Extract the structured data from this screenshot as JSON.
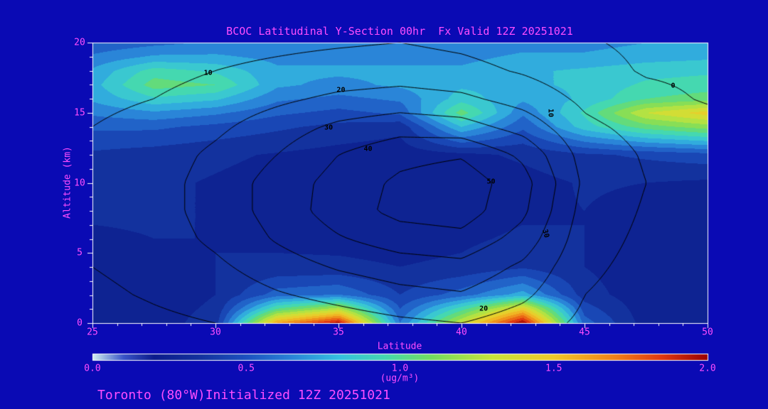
{
  "colors": {
    "background": "#0a0ab4",
    "text": "#ff4dff",
    "axis_line": "#ffffff",
    "contour_line": "#000000",
    "contour_label": "#000000"
  },
  "footer": {
    "text": "Toronto (80°W)Initialized 12Z 20251021"
  },
  "chart_data": {
    "type": "heatmap",
    "title": "BCOC Latitudinal Y-Section 00hr  Fx Valid 12Z 20251021",
    "xlabel": "Latitude",
    "ylabel": "Altitude (km)",
    "xlim": [
      25,
      50
    ],
    "ylim": [
      0,
      20
    ],
    "x_ticks": [
      "25",
      "30",
      "35",
      "40",
      "45",
      "50"
    ],
    "y_ticks": [
      "0",
      "5",
      "10",
      "15",
      "20"
    ],
    "x_minor_step": 1,
    "y_minor_step": 1,
    "grid": false,
    "colorbar": {
      "min": 0.0,
      "max": 2.0,
      "tick_labels": [
        "0.0",
        "0.5",
        "1.0",
        "1.5",
        "2.0"
      ],
      "units": "(ug/m³)",
      "stops": [
        [
          0.0,
          "#d2f0f0"
        ],
        [
          0.1,
          "#3a55c8"
        ],
        [
          0.2,
          "#0b1b8c"
        ],
        [
          0.35,
          "#13329e"
        ],
        [
          0.5,
          "#1c52c0"
        ],
        [
          0.65,
          "#2a85d8"
        ],
        [
          0.8,
          "#35c0e0"
        ],
        [
          0.95,
          "#45d8b0"
        ],
        [
          1.1,
          "#72dc60"
        ],
        [
          1.3,
          "#c8e43a"
        ],
        [
          1.5,
          "#f0c828"
        ],
        [
          1.7,
          "#f08018"
        ],
        [
          1.85,
          "#e03810"
        ],
        [
          2.0,
          "#990000"
        ]
      ]
    },
    "fill_field": {
      "units": "ug/m³",
      "lat": [
        25,
        27.5,
        30,
        32.5,
        35,
        37.5,
        40,
        42.5,
        45,
        47.5,
        50
      ],
      "alt": [
        0,
        1,
        2,
        4,
        6,
        8,
        10,
        12,
        14,
        15,
        16,
        17,
        18,
        19,
        20
      ],
      "values": [
        [
          0.22,
          0.25,
          0.35,
          1.6,
          1.95,
          0.6,
          1.3,
          2.0,
          0.55,
          0.25,
          0.22
        ],
        [
          0.22,
          0.25,
          0.32,
          1.0,
          1.25,
          0.5,
          0.95,
          1.45,
          0.45,
          0.24,
          0.22
        ],
        [
          0.22,
          0.24,
          0.3,
          0.55,
          0.6,
          0.4,
          0.55,
          0.75,
          0.35,
          0.23,
          0.22
        ],
        [
          0.25,
          0.27,
          0.3,
          0.32,
          0.32,
          0.3,
          0.32,
          0.38,
          0.3,
          0.23,
          0.22
        ],
        [
          0.28,
          0.3,
          0.3,
          0.28,
          0.27,
          0.26,
          0.28,
          0.32,
          0.3,
          0.25,
          0.23
        ],
        [
          0.32,
          0.32,
          0.29,
          0.26,
          0.24,
          0.23,
          0.24,
          0.28,
          0.3,
          0.27,
          0.25
        ],
        [
          0.34,
          0.32,
          0.29,
          0.26,
          0.23,
          0.21,
          0.22,
          0.26,
          0.31,
          0.3,
          0.28
        ],
        [
          0.38,
          0.35,
          0.32,
          0.29,
          0.26,
          0.24,
          0.27,
          0.32,
          0.38,
          0.42,
          0.46
        ],
        [
          0.52,
          0.52,
          0.47,
          0.42,
          0.37,
          0.33,
          0.8,
          0.52,
          0.85,
          1.05,
          1.15
        ],
        [
          0.62,
          0.68,
          0.62,
          0.52,
          0.47,
          0.52,
          1.05,
          0.62,
          0.92,
          1.3,
          1.45
        ],
        [
          0.72,
          0.88,
          0.82,
          0.62,
          0.57,
          0.62,
          0.85,
          0.72,
          0.82,
          1.0,
          1.05
        ],
        [
          0.76,
          1.05,
          1.0,
          0.72,
          0.67,
          0.72,
          0.78,
          0.78,
          0.82,
          0.92,
          0.95
        ],
        [
          0.72,
          0.95,
          0.88,
          0.72,
          0.72,
          0.72,
          0.72,
          0.78,
          0.82,
          0.86,
          0.88
        ],
        [
          0.62,
          0.72,
          0.72,
          0.67,
          0.67,
          0.67,
          0.67,
          0.72,
          0.72,
          0.76,
          0.78
        ],
        [
          0.52,
          0.57,
          0.62,
          0.62,
          0.62,
          0.62,
          0.62,
          0.66,
          0.66,
          0.7,
          0.72
        ]
      ]
    },
    "contour_overlay": {
      "levels": [
        0,
        10,
        20,
        30,
        40,
        50
      ],
      "lat": [
        25,
        27.5,
        30,
        32.5,
        35,
        37.5,
        40,
        42.5,
        45,
        47.5,
        50
      ],
      "alt": [
        0,
        2,
        4,
        6,
        8,
        10,
        12,
        14,
        16,
        18,
        20
      ],
      "values": [
        [
          5,
          8,
          10,
          12,
          15,
          18,
          20,
          15,
          8,
          5,
          3
        ],
        [
          8,
          11,
          14,
          19,
          23,
          27,
          29,
          22,
          10,
          6,
          4
        ],
        [
          10,
          13,
          18,
          25,
          31,
          35,
          37,
          28,
          12,
          7,
          5
        ],
        [
          12,
          15,
          22,
          31,
          39,
          45,
          47,
          36,
          14,
          8,
          6
        ],
        [
          13,
          16,
          24,
          34,
          45,
          53,
          55,
          42,
          16,
          9,
          6
        ],
        [
          13,
          16,
          24,
          34,
          44,
          52,
          56,
          44,
          18,
          10,
          7
        ],
        [
          12,
          15,
          22,
          30,
          40,
          47,
          49,
          38,
          16,
          9,
          6
        ],
        [
          10,
          13,
          18,
          25,
          32,
          36,
          34,
          26,
          12,
          7,
          4
        ],
        [
          8,
          10,
          14,
          18,
          22,
          24,
          22,
          16,
          8,
          3,
          -1
        ],
        [
          5,
          7,
          10,
          12,
          14,
          15,
          13,
          9,
          4,
          -1,
          -2
        ],
        [
          3,
          5,
          7,
          8,
          9,
          10,
          8,
          5,
          1,
          -2,
          -3
        ]
      ],
      "labels": [
        {
          "text": "10",
          "lat": 29.7,
          "alt": 17.8,
          "rot": 0
        },
        {
          "text": "20",
          "lat": 35.1,
          "alt": 16.6,
          "rot": 0
        },
        {
          "text": "30",
          "lat": 34.6,
          "alt": 13.9,
          "rot": 0
        },
        {
          "text": "40",
          "lat": 36.2,
          "alt": 12.4,
          "rot": 0
        },
        {
          "text": "50",
          "lat": 41.2,
          "alt": 10.1,
          "rot": 0
        },
        {
          "text": "10",
          "lat": 43.6,
          "alt": 15.0,
          "rot": 90
        },
        {
          "text": "0",
          "lat": 48.6,
          "alt": 16.9,
          "rot": 0
        },
        {
          "text": "30",
          "lat": 43.4,
          "alt": 6.4,
          "rot": 75
        },
        {
          "text": "20",
          "lat": 40.9,
          "alt": 1.0,
          "rot": 0
        }
      ]
    }
  }
}
